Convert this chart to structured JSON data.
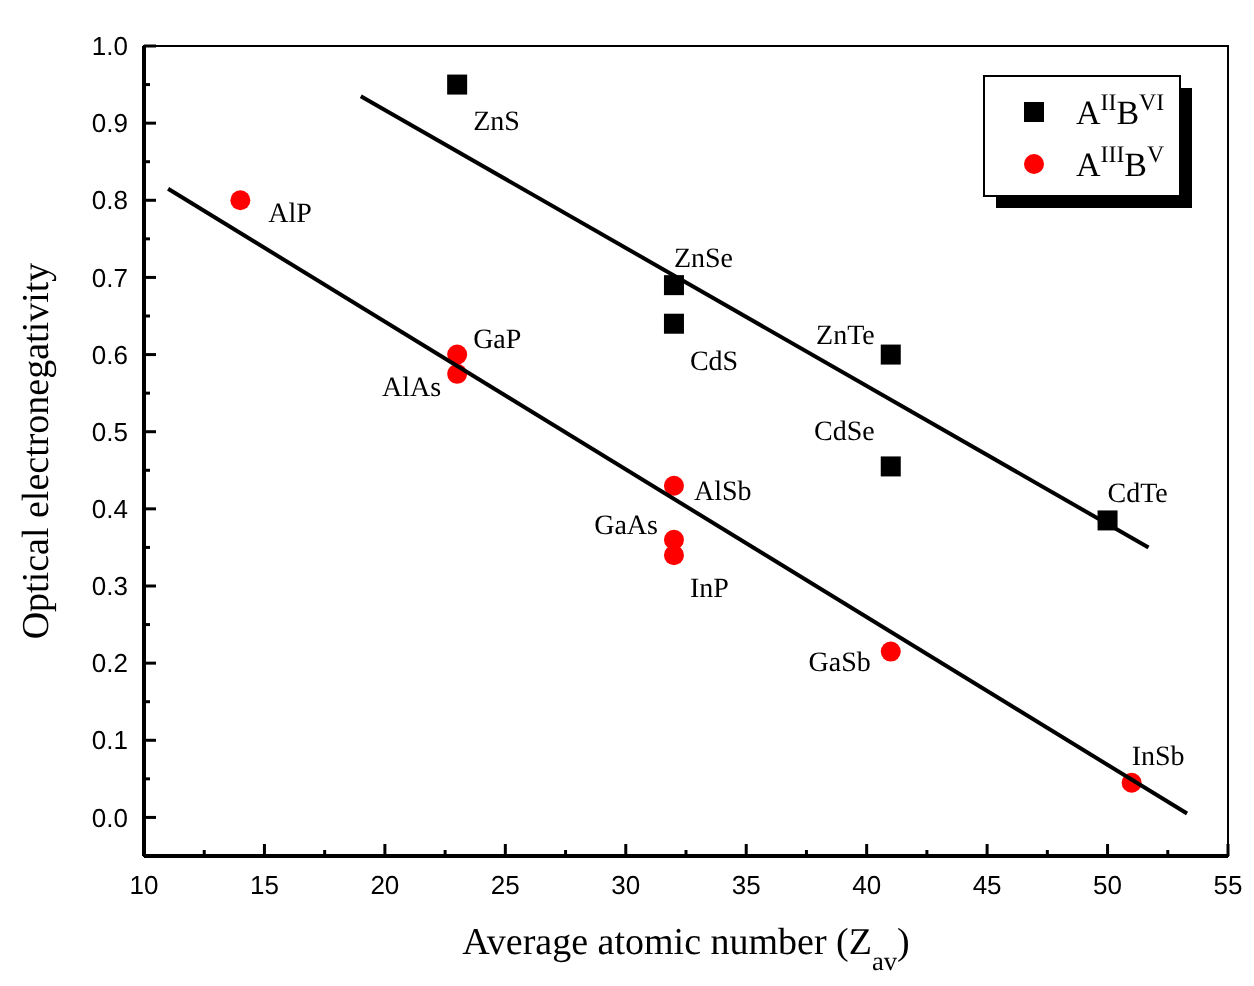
{
  "chart_data": {
    "type": "scatter",
    "xlabel": "Average atomic number (Z$_{av}$)",
    "ylabel": "Optical electronegativity",
    "xlim": [
      10,
      55
    ],
    "ylim": [
      -0.05,
      1.0
    ],
    "xticks": [
      10,
      {
        "value": 12.5,
        "label": null
      },
      15,
      {
        "value": 17.5,
        "label": null
      },
      20,
      {
        "value": 22.5,
        "label": null
      },
      25,
      {
        "value": 27.5,
        "label": null
      },
      30,
      {
        "value": 32.5,
        "label": null
      },
      35,
      {
        "value": 37.5,
        "label": null
      },
      40,
      {
        "value": 42.5,
        "label": null
      },
      45,
      {
        "value": 47.5,
        "label": null
      },
      50,
      {
        "value": 52.5,
        "label": null
      },
      55
    ],
    "yticks": [
      {
        "value": -0.05,
        "label": null
      },
      {
        "value": 0,
        "label": "0.0"
      },
      {
        "value": 0.05,
        "label": null
      },
      0.1,
      {
        "value": 0.15,
        "label": null
      },
      0.2,
      {
        "value": 0.25,
        "label": null
      },
      0.3,
      {
        "value": 0.35,
        "label": null
      },
      0.4,
      {
        "value": 0.45,
        "label": null
      },
      0.5,
      {
        "value": 0.55,
        "label": null
      },
      0.6,
      {
        "value": 0.65,
        "label": null
      },
      0.7,
      {
        "value": 0.75,
        "label": null
      },
      0.8,
      {
        "value": 0.85,
        "label": null
      },
      0.9,
      {
        "value": 0.95,
        "label": null
      },
      {
        "value": 1.0,
        "label": "1.0"
      }
    ],
    "grid": false,
    "legend": "top right",
    "series": [
      {
        "name": "A$^{II}$B$^{VI}$",
        "color": "#000000",
        "marker": "square",
        "x": [
          23,
          32,
          32,
          41,
          41,
          50
        ],
        "values": [
          0.95,
          0.69,
          0.64,
          0.6,
          0.455,
          0.385
        ]
      },
      {
        "name": "A$^{III}$B$^{V}$",
        "color": "#ff0000",
        "marker": "circle",
        "x": [
          14,
          23,
          23,
          32,
          32,
          32,
          41,
          51
        ],
        "values": [
          0.8,
          0.6,
          0.575,
          0.43,
          0.36,
          0.34,
          0.215,
          0.045
        ]
      },
      {
        "type": "line",
        "color": "#000000",
        "marker": "none",
        "x": [
          19,
          51.7
        ],
        "values": [
          0.935,
          0.35
        ]
      },
      {
        "type": "line",
        "color": "#000000",
        "marker": "none",
        "x": [
          11,
          53.3
        ],
        "values": [
          0.815,
          0.005
        ]
      }
    ],
    "annotations": [
      {
        "text": "ZnS",
        "x": 23,
        "y": 0.95
      },
      {
        "text": "ZnSe",
        "x": 32,
        "y": 0.69
      },
      {
        "text": "CdS",
        "x": 32,
        "y": 0.64
      },
      {
        "text": "ZnTe",
        "x": 41,
        "y": 0.6
      },
      {
        "text": "CdSe",
        "x": 41,
        "y": 0.455
      },
      {
        "text": "CdTe",
        "x": 50,
        "y": 0.385
      },
      {
        "text": "AlP",
        "x": 14,
        "y": 0.8
      },
      {
        "text": "GaP",
        "x": 23,
        "y": 0.6
      },
      {
        "text": "AlAs",
        "x": 23,
        "y": 0.575
      },
      {
        "text": "AlSb",
        "x": 32,
        "y": 0.43
      },
      {
        "text": "GaAs",
        "x": 32,
        "y": 0.36
      },
      {
        "text": "InP",
        "x": 32,
        "y": 0.34
      },
      {
        "text": "GaSb",
        "x": 41,
        "y": 0.215
      },
      {
        "text": "InSb",
        "x": 51,
        "y": 0.045
      }
    ]
  }
}
